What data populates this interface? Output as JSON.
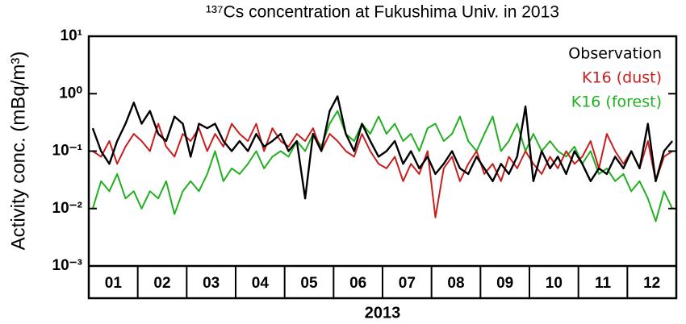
{
  "chart_data": {
    "type": "line",
    "title": "¹³⁷Cs concentration at Fukushima Univ. in 2013",
    "y_label": "Activity conc. (mBq/m³)",
    "x_label": "2013",
    "categories": [
      "01",
      "02",
      "03",
      "04",
      "05",
      "06",
      "07",
      "08",
      "09",
      "10",
      "11",
      "12"
    ],
    "log_y": true,
    "ylim": [
      0.001,
      10
    ],
    "yticks": [
      {
        "value": 0.001,
        "label": "10⁻³"
      },
      {
        "value": 0.01,
        "label": "10⁻²"
      },
      {
        "value": 0.1,
        "label": "10⁻¹"
      },
      {
        "value": 1,
        "label": "10⁰"
      },
      {
        "value": 10,
        "label": "10¹"
      }
    ],
    "xlim": [
      0,
      12
    ],
    "legend": "top-right",
    "x": [
      0.08,
      0.25,
      0.42,
      0.58,
      0.75,
      0.92,
      1.08,
      1.25,
      1.42,
      1.58,
      1.75,
      1.92,
      2.08,
      2.25,
      2.42,
      2.58,
      2.75,
      2.92,
      3.08,
      3.25,
      3.42,
      3.58,
      3.75,
      3.92,
      4.08,
      4.25,
      4.42,
      4.58,
      4.75,
      4.92,
      5.08,
      5.25,
      5.42,
      5.58,
      5.75,
      5.92,
      6.08,
      6.25,
      6.42,
      6.58,
      6.75,
      6.92,
      7.08,
      7.25,
      7.42,
      7.58,
      7.75,
      7.92,
      8.08,
      8.25,
      8.42,
      8.58,
      8.75,
      8.92,
      9.08,
      9.25,
      9.42,
      9.58,
      9.75,
      9.92,
      10.08,
      10.25,
      10.42,
      10.58,
      10.75,
      10.92,
      11.08,
      11.25,
      11.42,
      11.58,
      11.75,
      11.92
    ],
    "series": [
      {
        "name": "K16 (forest)",
        "color": "#22b022",
        "values": [
          0.01,
          0.03,
          0.02,
          0.04,
          0.015,
          0.02,
          0.01,
          0.02,
          0.015,
          0.03,
          0.008,
          0.02,
          0.03,
          0.02,
          0.04,
          0.1,
          0.03,
          0.05,
          0.04,
          0.06,
          0.1,
          0.05,
          0.08,
          0.1,
          0.08,
          0.15,
          0.1,
          0.2,
          0.12,
          0.3,
          0.5,
          0.2,
          0.15,
          0.3,
          0.2,
          0.4,
          0.2,
          0.3,
          0.15,
          0.2,
          0.1,
          0.25,
          0.3,
          0.15,
          0.2,
          0.4,
          0.15,
          0.1,
          0.2,
          0.4,
          0.1,
          0.15,
          0.3,
          0.1,
          0.2,
          0.1,
          0.15,
          0.1,
          0.08,
          0.12,
          0.06,
          0.1,
          0.04,
          0.05,
          0.03,
          0.04,
          0.02,
          0.03,
          0.015,
          0.006,
          0.02,
          0.01
        ]
      },
      {
        "name": "K16 (dust)",
        "color": "#c81e1e",
        "values": [
          0.1,
          0.08,
          0.15,
          0.06,
          0.12,
          0.2,
          0.15,
          0.1,
          0.3,
          0.12,
          0.08,
          0.2,
          0.15,
          0.25,
          0.1,
          0.2,
          0.12,
          0.3,
          0.2,
          0.15,
          0.3,
          0.1,
          0.25,
          0.15,
          0.12,
          0.2,
          0.15,
          0.25,
          0.1,
          0.2,
          0.15,
          0.1,
          0.08,
          0.2,
          0.1,
          0.06,
          0.05,
          0.08,
          0.03,
          0.06,
          0.04,
          0.1,
          0.007,
          0.05,
          0.08,
          0.03,
          0.06,
          0.1,
          0.04,
          0.06,
          0.03,
          0.08,
          0.05,
          0.1,
          0.06,
          0.04,
          0.08,
          0.05,
          0.1,
          0.06,
          0.08,
          0.15,
          0.05,
          0.2,
          0.1,
          0.06,
          0.1,
          0.05,
          0.15,
          0.03,
          0.08,
          0.1
        ]
      },
      {
        "name": "Observation",
        "color": "#000000",
        "values": [
          0.25,
          0.1,
          0.06,
          0.15,
          0.3,
          0.7,
          0.3,
          0.5,
          0.2,
          0.15,
          0.4,
          0.3,
          0.08,
          0.3,
          0.25,
          0.3,
          0.15,
          0.1,
          0.15,
          0.1,
          0.2,
          0.12,
          0.15,
          0.2,
          0.1,
          0.15,
          0.015,
          0.2,
          0.1,
          0.5,
          0.9,
          0.2,
          0.1,
          0.3,
          0.15,
          0.08,
          0.1,
          0.15,
          0.06,
          0.1,
          0.05,
          0.08,
          0.04,
          0.06,
          0.1,
          0.05,
          0.04,
          0.08,
          0.05,
          0.03,
          0.06,
          0.04,
          0.08,
          0.6,
          0.03,
          0.1,
          0.05,
          0.08,
          0.04,
          0.1,
          0.06,
          0.03,
          0.05,
          0.04,
          0.08,
          0.05,
          0.1,
          0.05,
          0.3,
          0.03,
          0.1,
          0.15
        ]
      }
    ]
  }
}
